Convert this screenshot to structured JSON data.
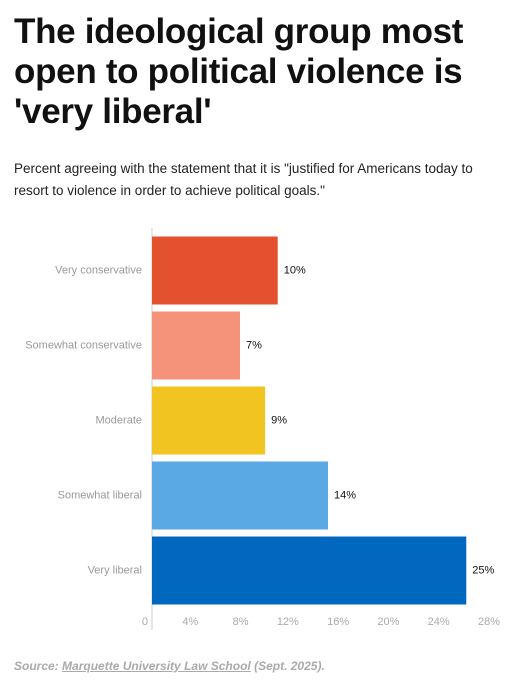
{
  "chart_data": {
    "type": "bar",
    "orientation": "horizontal",
    "title": "The ideological group most open to political violence is 'very liberal'",
    "subtitle": "Percent agreeing with the statement that it is \"justified for Americans today to resort to violence in order to achieve political goals.\"",
    "categories": [
      "Very conservative",
      "Somewhat conservative",
      "Moderate",
      "Somewhat liberal",
      "Very liberal"
    ],
    "values": [
      10,
      7,
      9,
      14,
      25
    ],
    "value_labels": [
      "10%",
      "7%",
      "9%",
      "14%",
      "25%"
    ],
    "colors": [
      "#e4512f",
      "#f4937a",
      "#f2c421",
      "#5aa9e4",
      "#0068be"
    ],
    "xlim": [
      0,
      28
    ],
    "xticks": [
      0,
      {
        "value": 4,
        "label": "4%"
      },
      {
        "value": 8,
        "label": "8%"
      },
      {
        "value": 12,
        "label": "12%"
      },
      {
        "value": 16,
        "label": "16%"
      },
      {
        "value": 20,
        "label": "20%"
      },
      {
        "value": 24,
        "label": "24%"
      },
      {
        "value": 28,
        "label": "28%"
      }
    ],
    "source_prefix": "Source:",
    "source_link": "Marquette University Law School",
    "source_suffix": "(Sept. 2025)."
  }
}
